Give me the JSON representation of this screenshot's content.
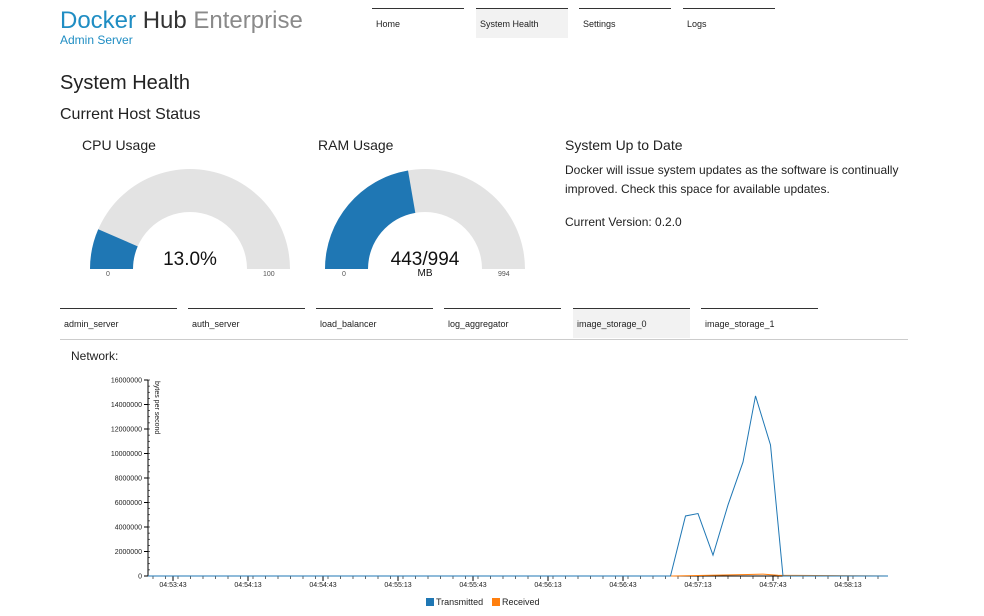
{
  "brand": {
    "word1": "Docker",
    "word2": "Hub",
    "word3": "Enterprise",
    "subtitle": "Admin Server"
  },
  "nav": {
    "tabs": [
      {
        "label": "Home",
        "active": false
      },
      {
        "label": "System Health",
        "active": true
      },
      {
        "label": "Settings",
        "active": false
      },
      {
        "label": "Logs",
        "active": false
      }
    ]
  },
  "page": {
    "title": "System Health",
    "section": "Current Host Status"
  },
  "cpu": {
    "title": "CPU Usage",
    "value_label": "13.0%",
    "value": 13.0,
    "min": "0",
    "max": "100",
    "color": "#1f77b4"
  },
  "ram": {
    "title": "RAM Usage",
    "value_label": "443/994",
    "unit": "MB",
    "used": 443,
    "total": 994,
    "min": "0",
    "max": "994",
    "color": "#1f77b4"
  },
  "updates": {
    "title": "System Up to Date",
    "text": "Docker will issue system updates as the software is continually improved. Check this space for available updates.",
    "version": "Current Version: 0.2.0"
  },
  "hosts": [
    {
      "label": "admin_server",
      "active": false
    },
    {
      "label": "auth_server",
      "active": false
    },
    {
      "label": "load_balancer",
      "active": false
    },
    {
      "label": "log_aggregator",
      "active": false
    },
    {
      "label": "image_storage_0",
      "active": true
    },
    {
      "label": "image_storage_1",
      "active": false
    }
  ],
  "network": {
    "title": "Network:"
  },
  "chart_data": {
    "type": "line",
    "ylabel": "bytes per second",
    "ylim": [
      0,
      16000000
    ],
    "y_ticks": [
      "0",
      "2000000",
      "4000000",
      "6000000",
      "8000000",
      "10000000",
      "12000000",
      "14000000",
      "16000000"
    ],
    "x_ticks": [
      "04:53:43",
      "04:54:13",
      "04:54:43",
      "04:55:13",
      "04:55:43",
      "04:56:13",
      "04:56:43",
      "04:57:13",
      "04:57:43",
      "04:58:13"
    ],
    "xlim_seconds": [
      -10,
      286
    ],
    "legend_position": "bottom",
    "series": [
      {
        "name": "Transmitted",
        "color": "#1f77b4",
        "t": [
          -10,
          194,
          199,
          205,
          210,
          216,
          222,
          228,
          233,
          239,
          244,
          249,
          286
        ],
        "values": [
          0,
          0,
          0,
          4900000,
          5100000,
          1700000,
          5800000,
          9300000,
          14700000,
          10700000,
          0,
          0,
          0
        ]
      },
      {
        "name": "Received",
        "color": "#ff7f0e",
        "t": [
          -10,
          200,
          210,
          220,
          230,
          236,
          242,
          286
        ],
        "values": [
          0,
          0,
          40000,
          80000,
          120000,
          150000,
          60000,
          0
        ]
      }
    ]
  }
}
